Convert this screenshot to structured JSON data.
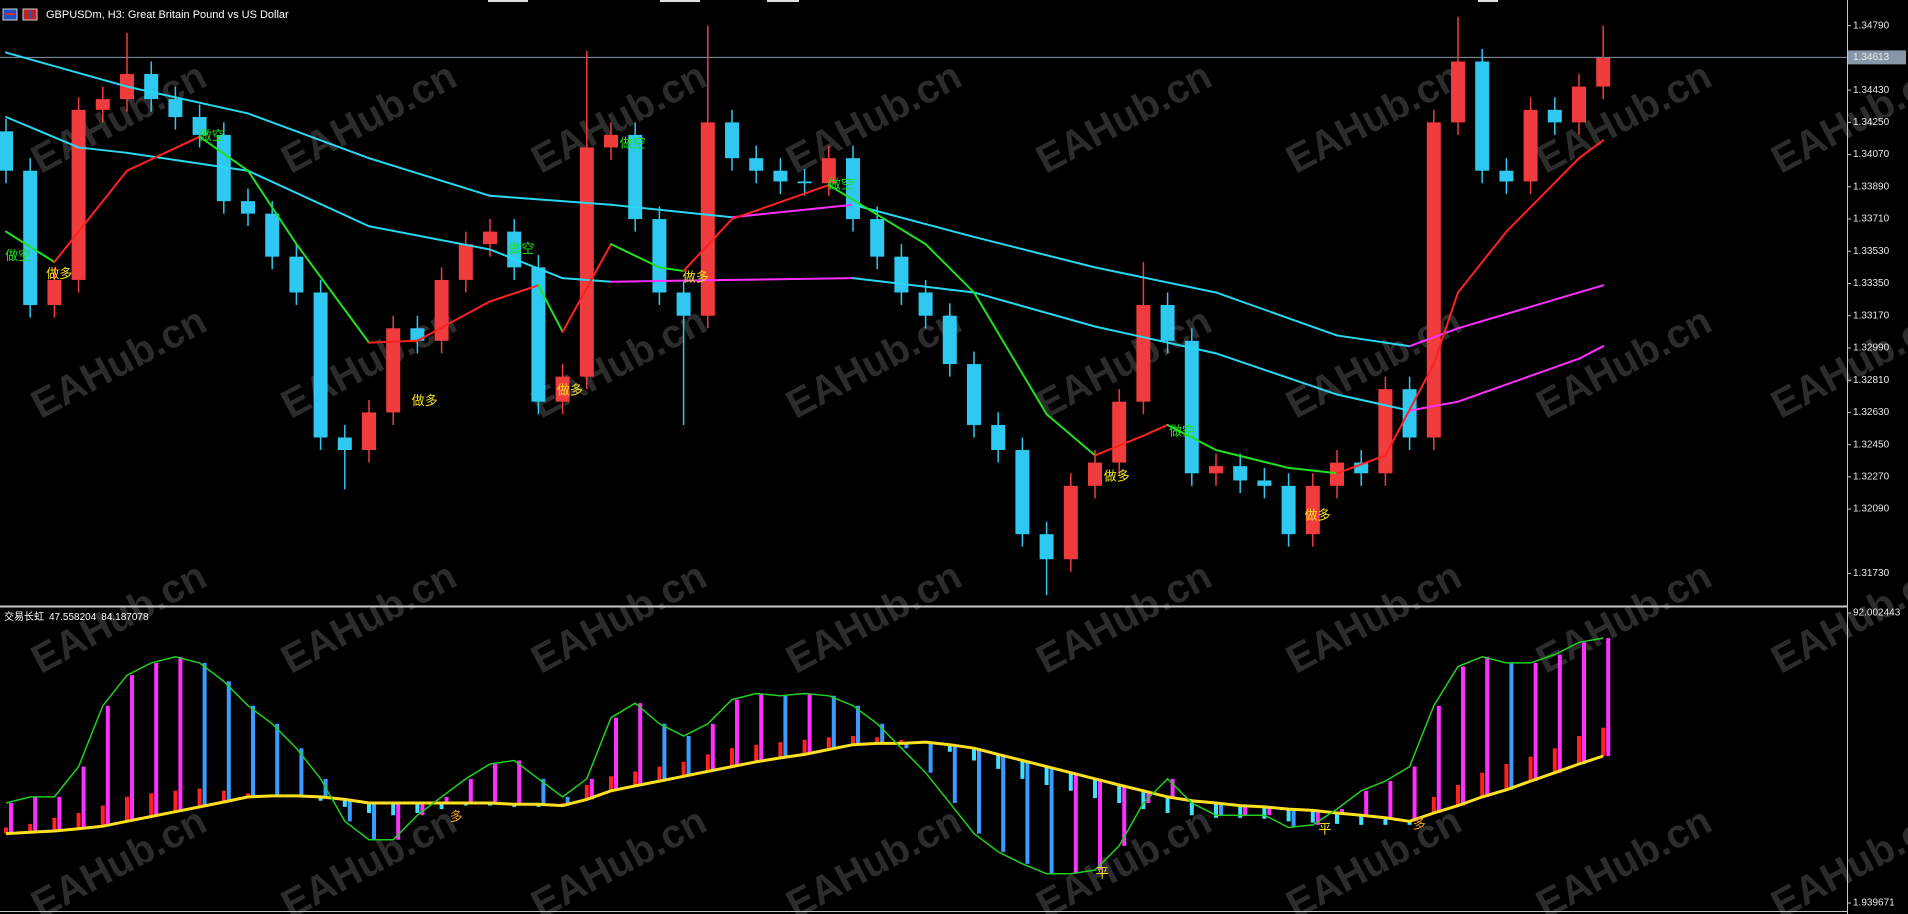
{
  "chart_data": [
    {
      "type": "candlestick",
      "title": "GBPUSDm, H3:  Great Britain Pound vs US Dollar",
      "open": [
        1.342,
        1.3398,
        1.3323,
        1.3337,
        1.3432,
        1.3438,
        1.3452,
        1.3438,
        1.3428,
        1.3418,
        1.3381,
        1.3374,
        1.335,
        1.333,
        1.3249,
        1.3242,
        1.3263,
        1.331,
        1.3303,
        1.3337,
        1.3357,
        1.3364,
        1.3344,
        1.3269,
        1.3283,
        1.3411,
        1.3418,
        1.3371,
        1.333,
        1.3317,
        1.3425,
        1.3405,
        1.3398,
        1.3392,
        1.3391,
        1.3405,
        1.3371,
        1.335,
        1.333,
        1.3317,
        1.329,
        1.3256,
        1.3242,
        1.3195,
        1.3181,
        1.3222,
        1.3235,
        1.3269,
        1.3323,
        1.3303,
        1.3229,
        1.3233,
        1.3225,
        1.3222,
        1.3195,
        1.3222,
        1.3235,
        1.3229,
        1.3276,
        1.3249,
        1.3425,
        1.3459,
        1.3398,
        1.3392,
        1.3432,
        1.3425,
        1.3445
      ],
      "high": [
        1.3427,
        1.3405,
        1.3344,
        1.3439,
        1.3445,
        1.3475,
        1.3459,
        1.3445,
        1.3435,
        1.3425,
        1.3388,
        1.3381,
        1.3357,
        1.3337,
        1.3256,
        1.327,
        1.3317,
        1.3317,
        1.3344,
        1.3364,
        1.3371,
        1.3371,
        1.3351,
        1.329,
        1.3465,
        1.3425,
        1.3425,
        1.3378,
        1.3337,
        1.3479,
        1.3432,
        1.3412,
        1.3405,
        1.3399,
        1.3412,
        1.3412,
        1.3378,
        1.3357,
        1.3337,
        1.3324,
        1.3297,
        1.3263,
        1.3249,
        1.3202,
        1.3229,
        1.3242,
        1.3276,
        1.3347,
        1.333,
        1.331,
        1.324,
        1.324,
        1.3232,
        1.3229,
        1.3229,
        1.3242,
        1.3242,
        1.3283,
        1.3283,
        1.3432,
        1.3484,
        1.3466,
        1.3405,
        1.3439,
        1.3439,
        1.3452,
        1.3479
      ],
      "low": [
        1.3391,
        1.3316,
        1.3316,
        1.333,
        1.3425,
        1.3431,
        1.3431,
        1.3421,
        1.3411,
        1.3374,
        1.3367,
        1.3343,
        1.3323,
        1.3242,
        1.322,
        1.3235,
        1.3256,
        1.3296,
        1.3296,
        1.333,
        1.335,
        1.3337,
        1.3262,
        1.3262,
        1.3276,
        1.3404,
        1.3364,
        1.3323,
        1.3256,
        1.331,
        1.3398,
        1.3391,
        1.3385,
        1.3384,
        1.3384,
        1.3364,
        1.3343,
        1.3323,
        1.331,
        1.3283,
        1.3249,
        1.3235,
        1.3188,
        1.3161,
        1.3174,
        1.3215,
        1.3228,
        1.3262,
        1.3296,
        1.3222,
        1.3222,
        1.3218,
        1.3215,
        1.3188,
        1.3188,
        1.3215,
        1.3222,
        1.3222,
        1.3242,
        1.3242,
        1.3418,
        1.3391,
        1.3385,
        1.3385,
        1.3418,
        1.3418,
        1.3438
      ],
      "close": [
        1.3398,
        1.3323,
        1.3337,
        1.3432,
        1.3438,
        1.3452,
        1.3438,
        1.3428,
        1.3418,
        1.3381,
        1.3374,
        1.335,
        1.333,
        1.3249,
        1.3242,
        1.3263,
        1.331,
        1.3303,
        1.3337,
        1.3357,
        1.3364,
        1.3344,
        1.3269,
        1.3283,
        1.3411,
        1.3418,
        1.3371,
        1.333,
        1.3317,
        1.3425,
        1.3405,
        1.3398,
        1.3392,
        1.3391,
        1.3405,
        1.3371,
        1.335,
        1.333,
        1.3317,
        1.329,
        1.3256,
        1.3242,
        1.3195,
        1.3181,
        1.3222,
        1.3235,
        1.3269,
        1.3323,
        1.3303,
        1.3229,
        1.3233,
        1.3225,
        1.3222,
        1.3195,
        1.3222,
        1.3235,
        1.3229,
        1.3276,
        1.3249,
        1.3425,
        1.3459,
        1.3398,
        1.3392,
        1.3432,
        1.3425,
        1.3445,
        1.3461
      ],
      "up_color": "#f03c3c",
      "down_color": "#2ec8f0",
      "ylim": [
        1.3156,
        1.349
      ],
      "yticks": [
        {
          "value": 1.3479,
          "label": "1.34790"
        },
        {
          "value": 1.3443,
          "label": "1.34430"
        },
        {
          "value": 1.3425,
          "label": "1.34250"
        },
        {
          "value": 1.3407,
          "label": "1.34070"
        },
        {
          "value": 1.3389,
          "label": "1.33890"
        },
        {
          "value": 1.3371,
          "label": "1.33710"
        },
        {
          "value": 1.3353,
          "label": "1.33530"
        },
        {
          "value": 1.3335,
          "label": "1.33350"
        },
        {
          "value": 1.3317,
          "label": "1.33170"
        },
        {
          "value": 1.3299,
          "label": "1.32990"
        },
        {
          "value": 1.3281,
          "label": "1.32810"
        },
        {
          "value": 1.3263,
          "label": "1.32630"
        },
        {
          "value": 1.3245,
          "label": "1.32450"
        },
        {
          "value": 1.3227,
          "label": "1.32270"
        },
        {
          "value": 1.3209,
          "label": "1.32090"
        },
        {
          "value": 1.3173,
          "label": "1.31730"
        }
      ],
      "last_price": 1.34613,
      "lines": [
        {
          "color": "#28d8f0",
          "up_color": "#ff30ff",
          "x": [
            0,
            5,
            10,
            15,
            20,
            25,
            30,
            35,
            40,
            45,
            50,
            55,
            58,
            60,
            65,
            66
          ],
          "values": [
            1.3464,
            1.3445,
            1.343,
            1.3405,
            1.3384,
            1.3379,
            1.3372,
            1.3379,
            1.3361,
            1.3344,
            1.333,
            1.3306,
            1.33,
            1.331,
            1.333,
            1.3334
          ]
        },
        {
          "color": "#28d8f0",
          "up_color": "#ff30ff",
          "x": [
            0,
            3,
            5,
            10,
            15,
            20,
            23,
            25,
            30,
            35,
            40,
            45,
            50,
            55,
            58,
            60,
            65,
            66
          ],
          "values": [
            1.3428,
            1.3411,
            1.3408,
            1.3398,
            1.3367,
            1.3354,
            1.3338,
            1.3336,
            1.3337,
            1.3338,
            1.333,
            1.3311,
            1.3296,
            1.3273,
            1.3264,
            1.3269,
            1.3293,
            1.33
          ]
        },
        {
          "color": "#20e020",
          "up_color": "#ff2020",
          "x": [
            0,
            2,
            5,
            8,
            10,
            12,
            15,
            17,
            20,
            22,
            23,
            25,
            27,
            28,
            30,
            34,
            38,
            40,
            43,
            45,
            47,
            48,
            50,
            53,
            55,
            57,
            59,
            60,
            62,
            65,
            66
          ],
          "values": [
            1.3364,
            1.3347,
            1.3398,
            1.3417,
            1.3398,
            1.3357,
            1.3302,
            1.3303,
            1.3325,
            1.3334,
            1.3308,
            1.3357,
            1.3344,
            1.3342,
            1.3371,
            1.339,
            1.3357,
            1.333,
            1.3262,
            1.3239,
            1.325,
            1.3256,
            1.3242,
            1.3232,
            1.3229,
            1.3239,
            1.329,
            1.333,
            1.3364,
            1.3405,
            1.3415
          ]
        }
      ],
      "annotations": [
        {
          "text": "做空",
          "x": 0.5,
          "y": 1.335,
          "color": "#20e020"
        },
        {
          "text": "做多",
          "x": 2.2,
          "y": 1.334,
          "color": "#f0e020"
        },
        {
          "text": "做空",
          "x": 8.5,
          "y": 1.3417,
          "color": "#20e020"
        },
        {
          "text": "做多",
          "x": 17.3,
          "y": 1.3269,
          "color": "#f0e020"
        },
        {
          "text": "做空",
          "x": 21.3,
          "y": 1.3354,
          "color": "#20e020"
        },
        {
          "text": "做多",
          "x": 23.3,
          "y": 1.3275,
          "color": "#f0e020"
        },
        {
          "text": "做空",
          "x": 25.9,
          "y": 1.3413,
          "color": "#20e020"
        },
        {
          "text": "做多",
          "x": 28.5,
          "y": 1.3338,
          "color": "#f0e020"
        },
        {
          "text": "做空",
          "x": 34.5,
          "y": 1.339,
          "color": "#20e020"
        },
        {
          "text": "做多",
          "x": 45.9,
          "y": 1.3227,
          "color": "#f0e020"
        },
        {
          "text": "做空",
          "x": 48.6,
          "y": 1.3252,
          "color": "#20e020"
        },
        {
          "text": "做多",
          "x": 54.2,
          "y": 1.3205,
          "color": "#f0e020"
        }
      ],
      "watermark": "EAHub.cn"
    },
    {
      "type": "oscillator",
      "title": "交易长虹",
      "readout": [
        47.558204,
        84.187078
      ],
      "ylim": [
        1.939671,
        92.002443
      ],
      "yticks": [
        92.002443,
        1.939671
      ],
      "fast": {
        "color": "#20d020",
        "values": [
          33.0,
          34.9,
          34.9,
          44.3,
          63.2,
          72.7,
          76.5,
          78.4,
          76.5,
          70.8,
          63.2,
          57.6,
          50.0,
          40.5,
          27.3,
          21.6,
          21.6,
          29.2,
          34.9,
          40.5,
          45.1,
          46.2,
          40.5,
          34.9,
          40.5,
          59.5,
          64.0,
          57.6,
          53.8,
          57.6,
          65.1,
          67.0,
          66.3,
          67.0,
          66.3,
          63.2,
          57.6,
          50.0,
          42.4,
          33.0,
          23.5,
          17.8,
          14.1,
          11.0,
          11.0,
          12.2,
          19.7,
          33.0,
          40.5,
          33.0,
          29.2,
          29.2,
          29.2,
          25.4,
          26.2,
          31.1,
          36.8,
          39.8,
          44.3,
          63.2,
          75.4,
          78.4,
          76.5,
          76.5,
          79.1,
          82.9,
          84.2
        ]
      },
      "slow": {
        "color": "#ffe020",
        "values": [
          23.5,
          23.9,
          24.3,
          25.0,
          25.8,
          27.3,
          28.8,
          30.3,
          31.8,
          33.3,
          34.9,
          35.2,
          35.2,
          34.9,
          34.1,
          33.0,
          33.0,
          33.0,
          33.0,
          33.0,
          33.0,
          32.6,
          32.6,
          32.2,
          34.1,
          36.8,
          38.3,
          39.8,
          41.3,
          42.8,
          44.3,
          45.8,
          47.0,
          48.1,
          49.6,
          51.1,
          51.5,
          51.5,
          51.9,
          51.1,
          50.0,
          48.1,
          46.2,
          44.3,
          42.4,
          40.5,
          38.6,
          36.8,
          34.9,
          33.7,
          33.0,
          32.2,
          31.8,
          31.1,
          30.7,
          29.9,
          29.2,
          28.4,
          27.3,
          29.9,
          32.2,
          34.9,
          37.1,
          39.8,
          42.4,
          45.1,
          47.6
        ]
      },
      "main_hist": {
        "up_color": "#ff30ff",
        "down_color": "#3a9cff"
      },
      "trend": {
        "up_color": "#ff2020",
        "down_color": "#40e0ff",
        "values": [
          25.4,
          26.5,
          28.4,
          29.9,
          32.2,
          34.9,
          36.0,
          36.8,
          37.5,
          36.8,
          36.0,
          35.6,
          35.2,
          33.7,
          31.8,
          29.9,
          29.2,
          29.9,
          31.1,
          32.2,
          32.2,
          31.8,
          31.8,
          33.0,
          38.6,
          41.3,
          42.8,
          44.3,
          45.8,
          48.1,
          50.0,
          51.1,
          51.9,
          52.6,
          53.4,
          53.8,
          53.4,
          52.6,
          51.9,
          48.9,
          46.2,
          43.6,
          40.5,
          38.6,
          36.8,
          34.5,
          33.0,
          31.1,
          29.9,
          29.2,
          28.4,
          28.4,
          28.1,
          27.3,
          26.9,
          26.5,
          26.2,
          26.2,
          26.2,
          34.9,
          38.6,
          42.4,
          45.1,
          47.4,
          50.0,
          53.8,
          56.4
        ]
      },
      "annotations": [
        {
          "text": "多",
          "x": 18.6,
          "y": 28.4,
          "color": "#f0a020"
        },
        {
          "text": "平",
          "x": 45.3,
          "y": 11.0,
          "color": "#f0e020"
        },
        {
          "text": "平",
          "x": 54.5,
          "y": 24.6,
          "color": "#f0e020"
        },
        {
          "text": "多",
          "x": 58.4,
          "y": 26.2,
          "color": "#f0a020"
        }
      ]
    }
  ]
}
